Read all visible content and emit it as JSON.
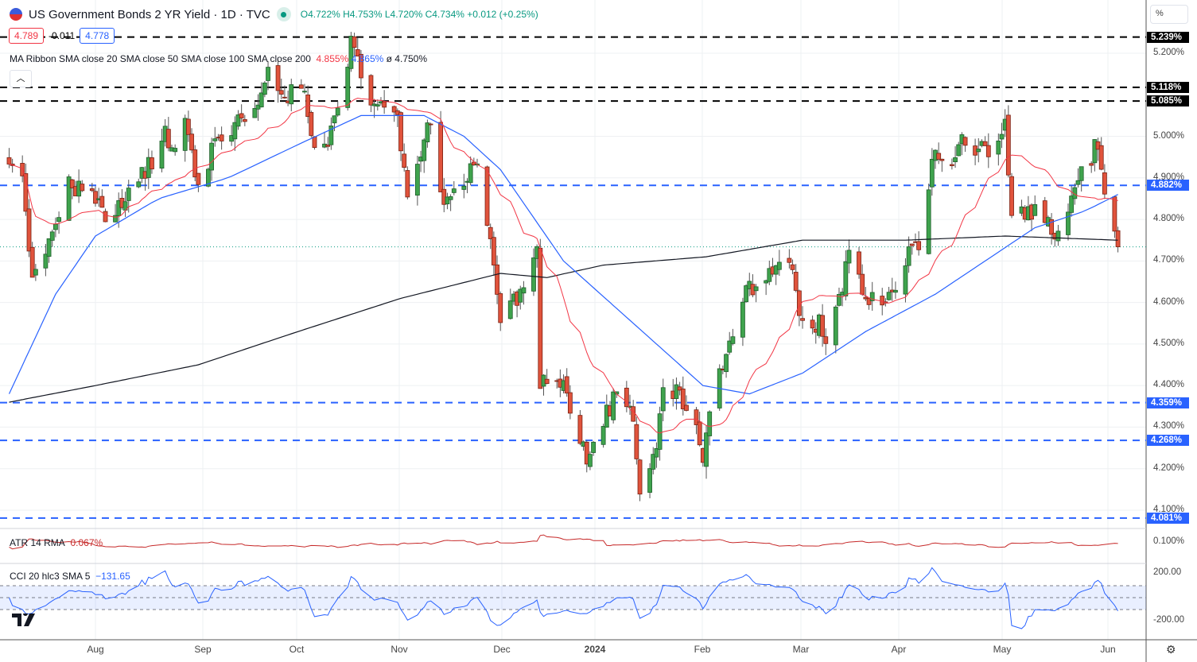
{
  "header": {
    "title": "US Government Bonds 2 YR Yield · 1D · TVC",
    "open": "O4.722%",
    "high": "H4.753%",
    "low": "L4.720%",
    "close": "C4.734%",
    "change": "+0.012 (+0.25%)"
  },
  "quote_boxes": {
    "sell": "4.789",
    "spread": "-0.011",
    "buy": "4.778"
  },
  "ma_legend": {
    "label": "MA Ribbon SMA close 20 SMA close 50 SMA close 100 SMA close 200",
    "v1": "4.855%",
    "v2": "4.865%",
    "v3": "ø  4.750%"
  },
  "atr": {
    "label": "ATR 14 RMA",
    "value": "0.067%",
    "axis": "0.100%"
  },
  "cci": {
    "label": "CCI 20 hlc3 SMA 5",
    "value": "−131.65",
    "axis_top": "200.00",
    "axis_bottom": "-200.00"
  },
  "scale_unit": "%",
  "colors": {
    "up": "#3fa34d",
    "down": "#e0533c",
    "sma20": "#f23645",
    "sma50": "#2962ff",
    "sma200": "#131722",
    "cci": "#2962ff",
    "atr": "#c62828"
  },
  "chart_data": {
    "type": "candlestick",
    "y_ticks": [
      "5.200%",
      "5.000%",
      "4.900%",
      "4.800%",
      "4.700%",
      "4.600%",
      "4.500%",
      "4.400%",
      "4.300%",
      "4.200%",
      "4.100%"
    ],
    "x_ticks": [
      "Aug",
      "Sep",
      "Oct",
      "Nov",
      "Dec",
      "2024",
      "Feb",
      "Mar",
      "Apr",
      "May",
      "Jun"
    ],
    "levels": [
      {
        "value": 5.239,
        "label": "5.239%",
        "color": "#000000"
      },
      {
        "value": 5.118,
        "label": "5.118%",
        "color": "#000000"
      },
      {
        "value": 5.085,
        "label": "5.085%",
        "color": "#000000"
      },
      {
        "value": 4.882,
        "label": "4.882%",
        "color": "#2962ff"
      },
      {
        "value": 4.359,
        "label": "4.359%",
        "color": "#2962ff"
      },
      {
        "value": 4.268,
        "label": "4.268%",
        "color": "#2962ff"
      },
      {
        "value": 4.081,
        "label": "4.081%",
        "color": "#2962ff"
      }
    ],
    "last_price": 4.734,
    "close_approx": [
      [
        "2023-07-06",
        4.95
      ],
      [
        "2023-07-10",
        4.88
      ],
      [
        "2023-07-13",
        4.65
      ],
      [
        "2023-07-18",
        4.75
      ],
      [
        "2023-07-24",
        4.88
      ],
      [
        "2023-07-31",
        4.88
      ],
      [
        "2023-08-04",
        4.78
      ],
      [
        "2023-08-10",
        4.85
      ],
      [
        "2023-08-17",
        4.93
      ],
      [
        "2023-08-22",
        5.0
      ],
      [
        "2023-08-24",
        4.95
      ],
      [
        "2023-08-28",
        5.05
      ],
      [
        "2023-09-01",
        4.88
      ],
      [
        "2023-09-06",
        4.98
      ],
      [
        "2023-09-12",
        5.02
      ],
      [
        "2023-09-19",
        5.1
      ],
      [
        "2023-09-21",
        5.15
      ],
      [
        "2023-09-27",
        5.1
      ],
      [
        "2023-10-03",
        5.1
      ],
      [
        "2023-10-06",
        4.95
      ],
      [
        "2023-10-10",
        4.98
      ],
      [
        "2023-10-13",
        5.05
      ],
      [
        "2023-10-17",
        5.22
      ],
      [
        "2023-10-19",
        5.17
      ],
      [
        "2023-10-23",
        5.08
      ],
      [
        "2023-10-27",
        5.07
      ],
      [
        "2023-10-31",
        5.05
      ],
      [
        "2023-11-03",
        4.85
      ],
      [
        "2023-11-07",
        4.93
      ],
      [
        "2023-11-10",
        5.05
      ],
      [
        "2023-11-14",
        4.83
      ],
      [
        "2023-11-21",
        4.9
      ],
      [
        "2023-11-24",
        4.95
      ],
      [
        "2023-11-28",
        4.73
      ],
      [
        "2023-12-01",
        4.55
      ],
      [
        "2023-12-05",
        4.6
      ],
      [
        "2023-12-12",
        4.72
      ],
      [
        "2023-12-13",
        4.4
      ],
      [
        "2023-12-18",
        4.43
      ],
      [
        "2023-12-22",
        4.35
      ],
      [
        "2023-12-27",
        4.23
      ],
      [
        "2024-01-02",
        4.33
      ],
      [
        "2024-01-05",
        4.38
      ],
      [
        "2024-01-09",
        4.36
      ],
      [
        "2024-01-12",
        4.15
      ],
      [
        "2024-01-16",
        4.22
      ],
      [
        "2024-01-19",
        4.38
      ],
      [
        "2024-01-24",
        4.38
      ],
      [
        "2024-01-29",
        4.32
      ],
      [
        "2024-01-31",
        4.2
      ],
      [
        "2024-02-02",
        4.36
      ],
      [
        "2024-02-06",
        4.45
      ],
      [
        "2024-02-13",
        4.62
      ],
      [
        "2024-02-16",
        4.65
      ],
      [
        "2024-02-22",
        4.7
      ],
      [
        "2024-02-27",
        4.68
      ],
      [
        "2024-03-01",
        4.54
      ],
      [
        "2024-03-06",
        4.55
      ],
      [
        "2024-03-08",
        4.48
      ],
      [
        "2024-03-12",
        4.6
      ],
      [
        "2024-03-15",
        4.72
      ],
      [
        "2024-03-20",
        4.62
      ],
      [
        "2024-03-26",
        4.58
      ],
      [
        "2024-04-01",
        4.7
      ],
      [
        "2024-04-05",
        4.75
      ],
      [
        "2024-04-10",
        4.97
      ],
      [
        "2024-04-15",
        4.92
      ],
      [
        "2024-04-18",
        4.98
      ],
      [
        "2024-04-25",
        4.96
      ],
      [
        "2024-04-29",
        4.97
      ],
      [
        "2024-05-01",
        5.02
      ],
      [
        "2024-05-03",
        4.82
      ],
      [
        "2024-05-08",
        4.82
      ],
      [
        "2024-05-14",
        4.8
      ],
      [
        "2024-05-16",
        4.75
      ],
      [
        "2024-05-22",
        4.88
      ],
      [
        "2024-05-28",
        4.97
      ],
      [
        "2024-05-30",
        4.92
      ],
      [
        "2024-06-03",
        4.77
      ],
      [
        "2024-06-04",
        4.734
      ]
    ],
    "sma50_approx": [
      [
        "2023-07-06",
        4.38
      ],
      [
        "2023-07-20",
        4.62
      ],
      [
        "2023-08-01",
        4.76
      ],
      [
        "2023-08-20",
        4.85
      ],
      [
        "2023-09-10",
        4.9
      ],
      [
        "2023-10-01",
        4.98
      ],
      [
        "2023-10-20",
        5.05
      ],
      [
        "2023-11-08",
        5.05
      ],
      [
        "2023-11-20",
        5.0
      ],
      [
        "2023-12-01",
        4.92
      ],
      [
        "2023-12-20",
        4.7
      ],
      [
        "2024-01-10",
        4.55
      ],
      [
        "2024-01-31",
        4.4
      ],
      [
        "2024-02-14",
        4.38
      ],
      [
        "2024-03-01",
        4.43
      ],
      [
        "2024-03-20",
        4.53
      ],
      [
        "2024-04-10",
        4.62
      ],
      [
        "2024-04-25",
        4.7
      ],
      [
        "2024-05-10",
        4.78
      ],
      [
        "2024-05-25",
        4.82
      ],
      [
        "2024-06-04",
        4.86
      ]
    ],
    "sma200_approx": [
      [
        "2023-07-06",
        4.36
      ],
      [
        "2023-08-01",
        4.4
      ],
      [
        "2023-09-01",
        4.45
      ],
      [
        "2023-10-01",
        4.53
      ],
      [
        "2023-11-01",
        4.61
      ],
      [
        "2023-12-01",
        4.67
      ],
      [
        "2023-12-15",
        4.66
      ],
      [
        "2024-01-01",
        4.69
      ],
      [
        "2024-02-01",
        4.71
      ],
      [
        "2024-03-01",
        4.75
      ],
      [
        "2024-04-01",
        4.75
      ],
      [
        "2024-05-01",
        4.76
      ],
      [
        "2024-06-04",
        4.75
      ]
    ]
  }
}
